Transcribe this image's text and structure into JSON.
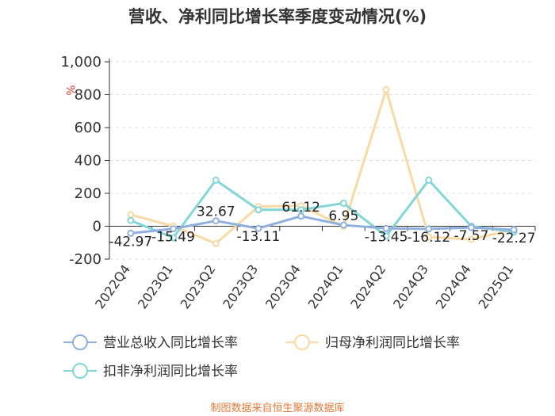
{
  "chart_data": {
    "type": "line",
    "title": "营收、净利同比增长率季度变动情况(%)",
    "unit_label": "%",
    "categories": [
      "2022Q4",
      "2023Q1",
      "2023Q2",
      "2023Q3",
      "2023Q4",
      "2024Q1",
      "2024Q2",
      "2024Q3",
      "2024Q4",
      "2025Q1"
    ],
    "ylim": [
      -200,
      1000
    ],
    "yticks": [
      -200,
      0,
      200,
      400,
      600,
      800,
      1000
    ],
    "ytick_labels": [
      "-200",
      "0",
      "200",
      "400",
      "600",
      "800",
      "1,000"
    ],
    "grid": true,
    "legend_position": "bottom",
    "series": [
      {
        "name": "营业总收入同比增长率",
        "color": "#8fb0de",
        "values": [
          -42.97,
          -15.49,
          32.67,
          -13.11,
          61.12,
          6.95,
          -13.45,
          -16.12,
          -7.57,
          -22.27
        ],
        "labels": [
          "-42.97",
          "-15.49",
          "32.67",
          "-13.11",
          "61.12",
          "6.95",
          "-13.45",
          "-16.12",
          "-7.57",
          "-22.27"
        ]
      },
      {
        "name": "归母净利润同比增长率",
        "color": "#f9d9a4",
        "values": [
          70,
          0,
          -105,
          120,
          125,
          0,
          830,
          -65,
          -80,
          -20
        ]
      },
      {
        "name": "扣非净利润同比增长率",
        "color": "#82d6d6",
        "values": [
          35,
          -70,
          280,
          100,
          100,
          140,
          -60,
          280,
          0,
          -35
        ]
      }
    ]
  },
  "source": "制图数据来自恒生聚源数据库",
  "colors": {
    "axis": "#333333",
    "grid": "#dddddd",
    "unit": "#e03030",
    "source": "#e07a3a"
  }
}
